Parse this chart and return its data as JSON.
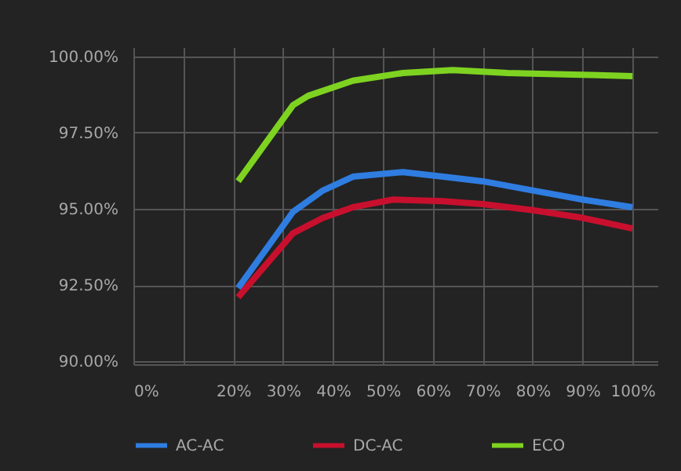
{
  "chart_data": {
    "type": "line",
    "series": [
      {
        "name": "AC-AC",
        "color": "#2f7de1",
        "x": [
          21,
          32,
          38,
          44,
          54,
          62,
          70,
          80,
          90,
          100
        ],
        "values": [
          92.4,
          94.9,
          95.6,
          96.05,
          96.2,
          96.05,
          95.9,
          95.6,
          95.3,
          95.05
        ]
      },
      {
        "name": "DC-AC",
        "color": "#c8102e",
        "x": [
          21,
          32,
          38,
          44,
          52,
          62,
          70,
          80,
          90,
          100
        ],
        "values": [
          92.1,
          94.2,
          94.7,
          95.05,
          95.3,
          95.25,
          95.15,
          94.95,
          94.7,
          94.35
        ]
      },
      {
        "name": "ECO",
        "color": "#7ed321",
        "x": [
          21,
          32,
          35,
          44,
          54,
          64,
          75,
          88,
          100
        ],
        "values": [
          95.9,
          98.4,
          98.7,
          99.2,
          99.45,
          99.55,
          99.45,
          99.4,
          99.35
        ]
      }
    ],
    "xlim": [
      0,
      105
    ],
    "ylim": [
      89.9,
      100.3
    ],
    "xticks": [
      {
        "value": 0,
        "label": "0%"
      },
      {
        "value": 10,
        "label": null
      },
      {
        "value": 20,
        "label": "20%"
      },
      {
        "value": 30,
        "label": "30%"
      },
      {
        "value": 40,
        "label": "40%"
      },
      {
        "value": 50,
        "label": "50%"
      },
      {
        "value": 60,
        "label": "60%"
      },
      {
        "value": 70,
        "label": "70%"
      },
      {
        "value": 80,
        "label": "80%"
      },
      {
        "value": 90,
        "label": "90%"
      },
      {
        "value": 100,
        "label": "100%"
      }
    ],
    "yticks": [
      {
        "value": 90,
        "label": "90.00%"
      },
      {
        "value": 92.5,
        "label": "92.50%"
      },
      {
        "value": 95,
        "label": "95.00%"
      },
      {
        "value": 97.5,
        "label": "97.50%"
      },
      {
        "value": 100,
        "label": "100.00%"
      }
    ],
    "grid": true,
    "legend": "bottom",
    "marker": "none",
    "line_style": "solid"
  }
}
